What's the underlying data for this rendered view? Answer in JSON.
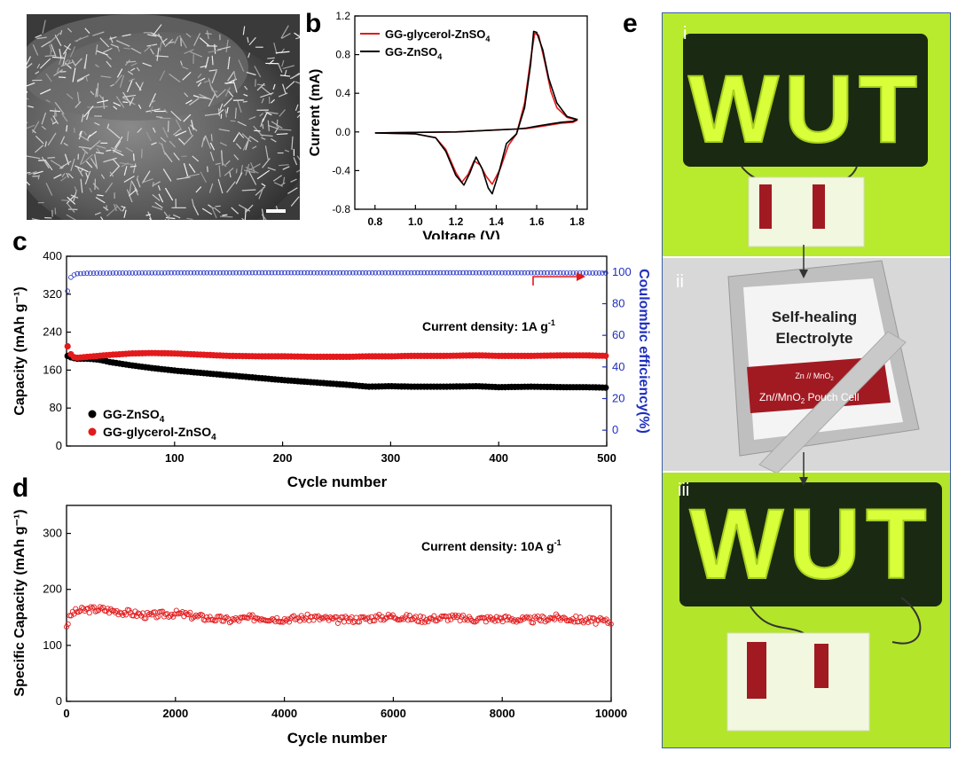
{
  "panel_labels": {
    "a": "a",
    "b": "b",
    "c": "c",
    "d": "d",
    "e": "e"
  },
  "colors": {
    "red": "#e31a1c",
    "black": "#000000",
    "blue": "#1f2fbf",
    "led": "#d8ff3a",
    "bg_green": "#b5e82a",
    "pouch": "#a11a22",
    "gray_bg": "#d6d6d6"
  },
  "chart_data": [
    {
      "id": "b",
      "type": "line",
      "title": "",
      "xlabel": "Voltage (V)",
      "ylabel": "Current (mA)",
      "xlim": [
        0.7,
        1.85
      ],
      "ylim": [
        -0.8,
        1.2
      ],
      "xticks": [
        "0.8",
        "1.0",
        "1.2",
        "1.4",
        "1.6",
        "1.8"
      ],
      "yticks": [
        "-0.8",
        "-0.4",
        "0.0",
        "0.4",
        "0.8",
        "1.2"
      ],
      "legend": {
        "position": "top-left",
        "entries": [
          {
            "label": "GG-glycerol-ZnSO",
            "sub": "4"
          },
          {
            "label": "GG-ZnSO",
            "sub": "4"
          }
        ]
      },
      "series": [
        {
          "name": "GG-glycerol-ZnSO4",
          "color": "#e31a1c",
          "x": [
            0.8,
            1.0,
            1.1,
            1.15,
            1.2,
            1.23,
            1.26,
            1.29,
            1.32,
            1.35,
            1.38,
            1.42,
            1.46,
            1.5,
            1.54,
            1.57,
            1.59,
            1.61,
            1.64,
            1.67,
            1.7,
            1.75,
            1.8,
            1.78,
            1.72,
            1.66,
            1.6,
            1.55,
            1.5,
            1.4,
            1.3,
            1.2,
            1.0,
            0.8
          ],
          "y": [
            -0.01,
            -0.02,
            -0.06,
            -0.18,
            -0.42,
            -0.52,
            -0.44,
            -0.3,
            -0.34,
            -0.46,
            -0.54,
            -0.38,
            -0.14,
            -0.02,
            0.3,
            0.75,
            1.02,
            1.0,
            0.72,
            0.42,
            0.25,
            0.15,
            0.12,
            0.1,
            0.09,
            0.07,
            0.05,
            0.035,
            0.03,
            0.02,
            0.01,
            0.0,
            -0.005,
            -0.01
          ]
        },
        {
          "name": "GG-ZnSO4",
          "color": "#000000",
          "x": [
            0.8,
            1.0,
            1.1,
            1.15,
            1.2,
            1.24,
            1.27,
            1.3,
            1.33,
            1.36,
            1.38,
            1.41,
            1.45,
            1.5,
            1.54,
            1.57,
            1.585,
            1.6,
            1.63,
            1.66,
            1.7,
            1.75,
            1.8,
            1.78,
            1.72,
            1.66,
            1.6,
            1.55,
            1.5,
            1.4,
            1.3,
            1.2,
            1.0,
            0.8
          ],
          "y": [
            -0.01,
            -0.02,
            -0.06,
            -0.2,
            -0.45,
            -0.55,
            -0.42,
            -0.26,
            -0.38,
            -0.58,
            -0.64,
            -0.44,
            -0.12,
            -0.02,
            0.25,
            0.7,
            1.04,
            1.03,
            0.85,
            0.55,
            0.3,
            0.16,
            0.13,
            0.11,
            0.1,
            0.08,
            0.06,
            0.04,
            0.03,
            0.02,
            0.01,
            0.0,
            -0.005,
            -0.01
          ]
        }
      ]
    },
    {
      "id": "c",
      "type": "scatter",
      "title": "",
      "xlabel": "Cycle number",
      "ylabel": "Capacity (mAh g⁻¹)",
      "y2label": "Coulombic efficiency(%)",
      "xlim": [
        0,
        500
      ],
      "ylim": [
        0,
        400
      ],
      "y2lim": [
        -10,
        110
      ],
      "xticks": [
        "100",
        "200",
        "300",
        "400",
        "500"
      ],
      "yticks": [
        "0",
        "80",
        "160",
        "240",
        "320",
        "400"
      ],
      "y2ticks": [
        "0",
        "20",
        "40",
        "60",
        "80",
        "100"
      ],
      "annotation": {
        "text": "Current density: 1A g",
        "sup": "-1"
      },
      "legend": {
        "position": "bottom-left",
        "entries": [
          {
            "label": "GG-ZnSO",
            "sub": "4",
            "color": "#000000"
          },
          {
            "label": "GG-glycerol-ZnSO",
            "sub": "4",
            "color": "#e31a1c"
          }
        ]
      },
      "series": [
        {
          "name": "GG-ZnSO4",
          "color": "#000000",
          "axis": "left",
          "x": [
            1,
            5,
            10,
            20,
            30,
            40,
            60,
            80,
            100,
            120,
            150,
            180,
            200,
            230,
            260,
            280,
            300,
            320,
            350,
            380,
            400,
            430,
            460,
            480,
            500
          ],
          "y": [
            190,
            186,
            184,
            184,
            182,
            177,
            170,
            164,
            159,
            155,
            149,
            143,
            139,
            134,
            129,
            125,
            126,
            125,
            125,
            126,
            124,
            125,
            124,
            124,
            123
          ]
        },
        {
          "name": "GG-glycerol-ZnSO4",
          "color": "#e31a1c",
          "axis": "left",
          "x": [
            1,
            5,
            10,
            20,
            30,
            40,
            60,
            80,
            100,
            120,
            150,
            180,
            200,
            230,
            260,
            280,
            300,
            320,
            350,
            380,
            400,
            430,
            460,
            480,
            500
          ],
          "y": [
            210,
            188,
            186,
            188,
            190,
            192,
            195,
            196,
            195,
            193,
            190,
            189,
            189,
            188,
            188,
            189,
            189,
            190,
            190,
            191,
            190,
            190,
            191,
            191,
            190
          ]
        },
        {
          "name": "CE",
          "color": "#1f2fbf",
          "axis": "right",
          "x": [
            1,
            3,
            6,
            10,
            20,
            50,
            100,
            150,
            200,
            250,
            300,
            350,
            400,
            450,
            500
          ],
          "y": [
            88,
            96,
            98,
            99,
            99.3,
            99.4,
            99.5,
            99.5,
            99.6,
            99.5,
            99.5,
            99.6,
            99.5,
            99.5,
            99.4
          ]
        }
      ]
    },
    {
      "id": "d",
      "type": "scatter",
      "title": "",
      "xlabel": "Cycle number",
      "ylabel": "Specific Capacity (mAh g⁻¹)",
      "xlim": [
        0,
        10000
      ],
      "ylim": [
        0,
        350
      ],
      "xticks": [
        "0",
        "2000",
        "4000",
        "6000",
        "8000",
        "10000"
      ],
      "yticks": [
        "0",
        "100",
        "200",
        "300"
      ],
      "annotation": {
        "text": "Current density: 10A g",
        "sup": "-1"
      },
      "series": [
        {
          "name": "GG-glycerol-ZnSO4",
          "color": "#e31a1c",
          "x": [
            0,
            100,
            300,
            600,
            1000,
            1500,
            2000,
            2500,
            3000,
            3500,
            4000,
            4500,
            5000,
            5500,
            6000,
            6500,
            7000,
            7500,
            8000,
            8500,
            9000,
            9500,
            10000
          ],
          "y": [
            135,
            158,
            163,
            165,
            160,
            153,
            157,
            150,
            145,
            150,
            147,
            150,
            145,
            148,
            152,
            147,
            150,
            147,
            148,
            145,
            150,
            145,
            142
          ]
        }
      ]
    }
  ],
  "photo": {
    "labels": {
      "i": "i",
      "ii": "ii",
      "iii": "iii"
    },
    "sign_text": "WUT",
    "pouch_title_line1": "Self-healing",
    "pouch_title_line2": "Electrolyte",
    "pouch_small": "Zn // MnO",
    "pouch_small_sub": "2",
    "pouch_band": "Zn//MnO",
    "pouch_band_sub": "2",
    "pouch_band_tail": " Pouch Cell"
  }
}
